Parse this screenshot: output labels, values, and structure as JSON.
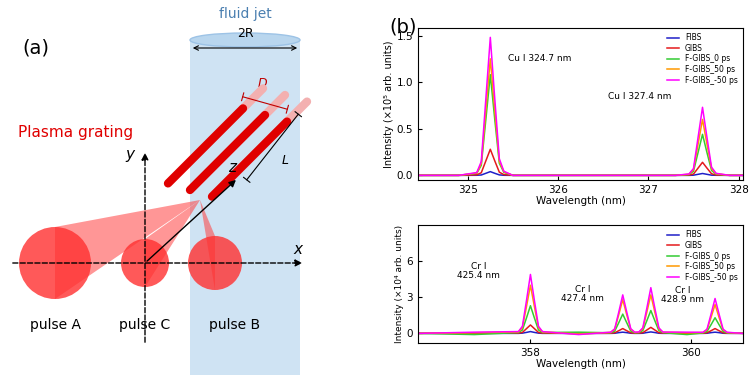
{
  "diagram": {
    "panel_label": "(a)",
    "jet_label": "fluid jet",
    "jet_width_label": "2R",
    "grating_label": "Plasma grating",
    "spacing_label": "D",
    "length_label": "L",
    "axis_labels": {
      "x": "x",
      "y": "y",
      "z": "z"
    },
    "pulses": [
      "pulse A",
      "pulse C",
      "pulse B"
    ]
  },
  "chart_panel_label": "(b)",
  "chart_data": [
    {
      "type": "line",
      "xlabel": "Wavelength (nm)",
      "ylabel": "Intensity (×10⁵ arb. units)",
      "x": [
        324.45,
        324.9,
        325.1,
        325.15,
        325.2,
        325.25,
        325.3,
        325.35,
        325.4,
        325.5,
        326.0,
        326.5,
        327.0,
        327.3,
        327.45,
        327.5,
        327.55,
        327.6,
        327.65,
        327.7,
        327.75,
        327.9,
        328.05
      ],
      "series": [
        {
          "name": "FIBS",
          "color": "#1f1fc8",
          "values": [
            0,
            0,
            0.001,
            0.004,
            0.022,
            0.04,
            0.022,
            0.005,
            0.001,
            0,
            0,
            0,
            0,
            0,
            0,
            0.002,
            0.011,
            0.02,
            0.011,
            0.002,
            0.001,
            0,
            0
          ]
        },
        {
          "name": "GIBS",
          "color": "#e41a1c",
          "values": [
            0,
            0,
            0.006,
            0.028,
            0.154,
            0.28,
            0.154,
            0.034,
            0.008,
            0,
            0,
            0,
            0,
            0,
            0.003,
            0.014,
            0.077,
            0.14,
            0.077,
            0.017,
            0.004,
            0,
            0
          ]
        },
        {
          "name": "F-GIBS_0 ps",
          "color": "#33cc33",
          "values": [
            0,
            0,
            0.022,
            0.108,
            0.594,
            1.08,
            0.594,
            0.13,
            0.032,
            0,
            0,
            0,
            0,
            0,
            0.009,
            0.044,
            0.242,
            0.44,
            0.242,
            0.053,
            0.013,
            0,
            0
          ]
        },
        {
          "name": "F-GIBS_50 ps",
          "color": "#ff9900",
          "values": [
            0,
            0,
            0.025,
            0.125,
            0.688,
            1.25,
            0.688,
            0.15,
            0.038,
            0,
            0,
            0,
            0,
            0,
            0.012,
            0.06,
            0.33,
            0.6,
            0.33,
            0.072,
            0.018,
            0,
            0
          ]
        },
        {
          "name": "F-GIBS_-50 ps",
          "color": "#ff00ff",
          "values": [
            0,
            0,
            0.03,
            0.148,
            0.814,
            1.48,
            0.814,
            0.178,
            0.044,
            0,
            0,
            0,
            0,
            0,
            0.015,
            0.073,
            0.402,
            0.73,
            0.402,
            0.088,
            0.022,
            0,
            0
          ]
        }
      ],
      "xlim": [
        324.45,
        328.05
      ],
      "xticks": [
        325,
        326,
        327,
        328
      ],
      "ylim": [
        -0.05,
        1.58
      ],
      "yticks": [
        {
          "value": 0,
          "label": "0.0"
        },
        0.5,
        {
          "value": 1,
          "label": "1.0"
        },
        1.5
      ],
      "legend": "upper right",
      "annotations": [
        "Cu I 324.7 nm",
        "Cu I 327.4 nm"
      ]
    },
    {
      "type": "line",
      "xlabel": "Wavelength (nm)",
      "ylabel": "Intensity (×10⁴ arb. units)",
      "x": [
        356.6,
        357.3,
        357.85,
        357.9,
        357.95,
        358.0,
        358.05,
        358.1,
        358.15,
        358.6,
        359.0,
        359.05,
        359.1,
        359.15,
        359.2,
        359.25,
        359.3,
        359.35,
        359.4,
        359.45,
        359.5,
        359.55,
        359.6,
        359.65,
        359.95,
        360.15,
        360.2,
        360.25,
        360.3,
        360.35,
        360.4,
        360.45,
        360.65
      ],
      "series": [
        {
          "name": "FIBS",
          "color": "#1f1fc8",
          "values": [
            0,
            0,
            0,
            0.02,
            0.08,
            0.15,
            0.08,
            0.02,
            0,
            0,
            0,
            0.01,
            0.06,
            0.1,
            0.06,
            0.01,
            0,
            0,
            0.01,
            0.07,
            0.12,
            0.07,
            0.01,
            0,
            0,
            0,
            0.01,
            0.06,
            0.1,
            0.06,
            0.01,
            0,
            0
          ]
        },
        {
          "name": "GIBS",
          "color": "#e41a1c",
          "values": [
            0,
            0.05,
            0.02,
            0.08,
            0.39,
            0.7,
            0.39,
            0.08,
            0.02,
            0,
            0.01,
            0.05,
            0.22,
            0.4,
            0.22,
            0.05,
            0.01,
            0.02,
            0.06,
            0.28,
            0.5,
            0.28,
            0.06,
            0.02,
            0,
            0.01,
            0.05,
            0.22,
            0.4,
            0.22,
            0.05,
            0.01,
            0
          ]
        },
        {
          "name": "F-GIBS_0 ps",
          "color": "#33cc33",
          "values": [
            0,
            -0.1,
            0.07,
            0.28,
            1.27,
            2.3,
            1.27,
            0.28,
            0.07,
            0.1,
            0.05,
            0.19,
            0.88,
            1.6,
            0.88,
            0.19,
            0.05,
            0.06,
            0.23,
            1.05,
            1.9,
            1.05,
            0.23,
            0.06,
            -0.1,
            0.04,
            0.16,
            0.72,
            1.3,
            0.72,
            0.16,
            0.04,
            0
          ]
        },
        {
          "name": "F-GIBS_50 ps",
          "color": "#ff9900",
          "values": [
            0,
            0.05,
            0.12,
            0.48,
            2.2,
            4.0,
            2.2,
            0.48,
            0.12,
            -0.05,
            0.08,
            0.34,
            1.54,
            2.8,
            1.54,
            0.34,
            0.08,
            0.1,
            0.38,
            1.76,
            3.2,
            1.76,
            0.38,
            0.1,
            0.05,
            0.07,
            0.29,
            1.32,
            2.4,
            1.32,
            0.29,
            0.07,
            0
          ]
        },
        {
          "name": "F-GIBS_-50 ps",
          "color": "#ff00ff",
          "values": [
            0,
            0.1,
            0.15,
            0.59,
            2.7,
            4.9,
            2.7,
            0.59,
            0.15,
            -0.1,
            0.1,
            0.38,
            1.76,
            3.2,
            1.76,
            0.38,
            0.1,
            0.11,
            0.46,
            2.09,
            3.8,
            2.09,
            0.46,
            0.11,
            0.1,
            0.09,
            0.35,
            1.6,
            2.9,
            1.6,
            0.35,
            0.09,
            0
          ]
        }
      ],
      "xlim": [
        356.6,
        360.65
      ],
      "xticks": [
        358,
        360
      ],
      "ylim": [
        -0.8,
        9.0
      ],
      "yticks": [
        0,
        3,
        6
      ],
      "legend": "upper right",
      "annotations": [
        "Cr I\n425.4 nm",
        "Cr I\n427.4 nm",
        "Cr I\n428.9 nm"
      ]
    }
  ]
}
